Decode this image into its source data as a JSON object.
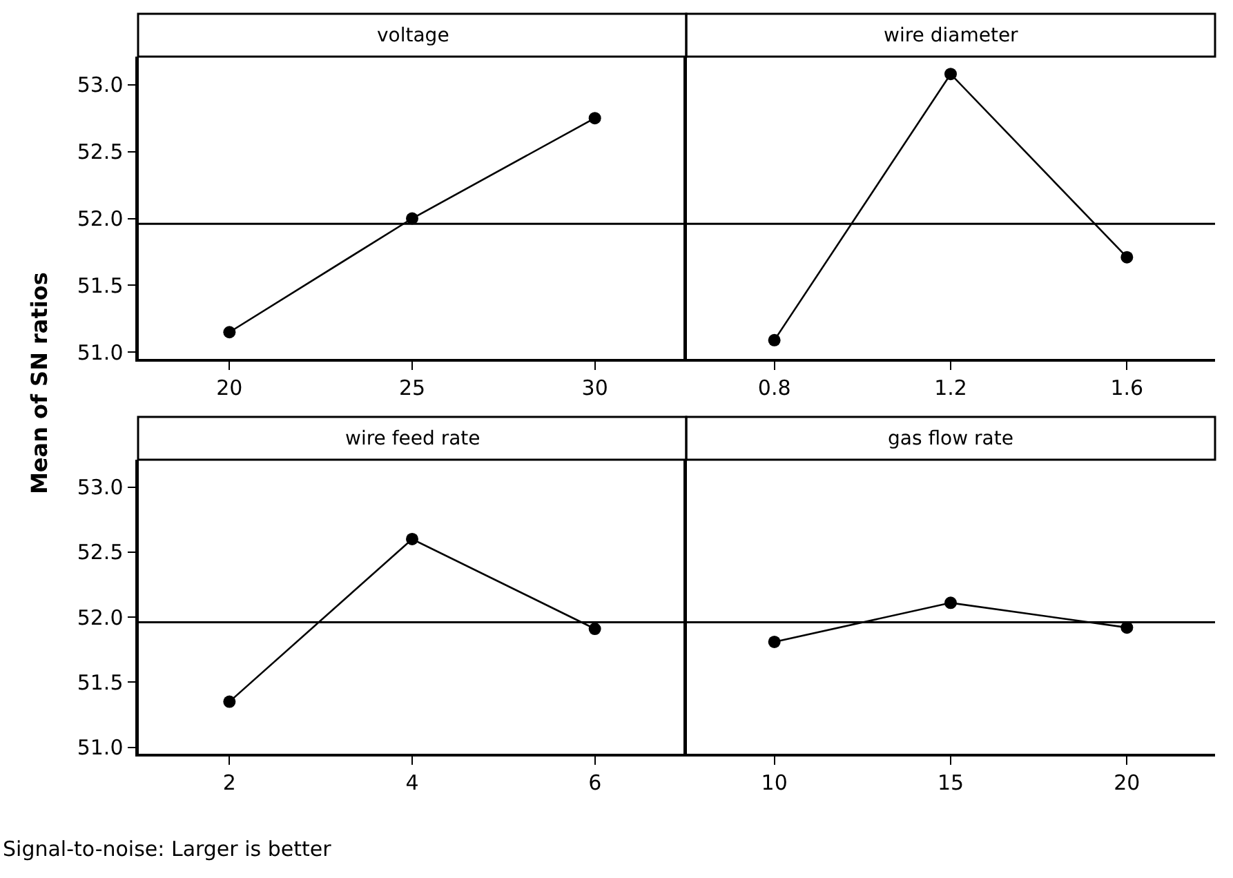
{
  "chart_data": [
    {
      "type": "line",
      "title": "voltage",
      "ylabel": "Mean of SN ratios",
      "categories": [
        "20",
        "25",
        "30"
      ],
      "series": [
        {
          "color": "#000000",
          "values": [
            51.15,
            52.0,
            52.75
          ]
        }
      ],
      "marker": "circle",
      "line_style": "solid",
      "ylim": [
        50.95,
        53.21
      ],
      "yticks": [
        {
          "value": 51,
          "label": "51.0"
        },
        {
          "value": 51.5,
          "label": "51.5"
        },
        {
          "value": 52,
          "label": "52.0"
        },
        {
          "value": 52.5,
          "label": "52.5"
        },
        {
          "value": 53,
          "label": "53.0"
        }
      ],
      "ref_lines": [
        {
          "axis": "y",
          "value": 51.96,
          "color": "#000000"
        }
      ]
    },
    {
      "type": "line",
      "title": "wire diameter",
      "categories": [
        "0.8",
        "1.2",
        "1.6"
      ],
      "series": [
        {
          "color": "#000000",
          "values": [
            51.09,
            53.08,
            51.71
          ]
        }
      ],
      "marker": "circle",
      "line_style": "solid",
      "ylim": [
        50.95,
        53.21
      ],
      "tick_labels": "x",
      "ref_lines": [
        {
          "axis": "y",
          "value": 51.96,
          "color": "#000000"
        }
      ]
    },
    {
      "type": "line",
      "title": "wire feed rate",
      "categories": [
        "2",
        "4",
        "6"
      ],
      "series": [
        {
          "color": "#000000",
          "values": [
            51.35,
            52.6,
            51.91
          ]
        }
      ],
      "marker": "circle",
      "line_style": "solid",
      "ylim": [
        50.95,
        53.21
      ],
      "yticks": [
        {
          "value": 51,
          "label": "51.0"
        },
        {
          "value": 51.5,
          "label": "51.5"
        },
        {
          "value": 52,
          "label": "52.0"
        },
        {
          "value": 52.5,
          "label": "52.5"
        },
        {
          "value": 53,
          "label": "53.0"
        }
      ],
      "ref_lines": [
        {
          "axis": "y",
          "value": 51.96,
          "color": "#000000"
        }
      ],
      "annotations": [
        "Signal-to-noise: Larger is better"
      ]
    },
    {
      "type": "line",
      "title": "gas flow rate",
      "categories": [
        "10",
        "15",
        "20"
      ],
      "series": [
        {
          "color": "#000000",
          "values": [
            51.81,
            52.11,
            51.92
          ]
        }
      ],
      "marker": "circle",
      "line_style": "solid",
      "ylim": [
        50.95,
        53.21
      ],
      "tick_labels": "x",
      "ref_lines": [
        {
          "axis": "y",
          "value": 51.96,
          "color": "#000000"
        }
      ]
    }
  ]
}
